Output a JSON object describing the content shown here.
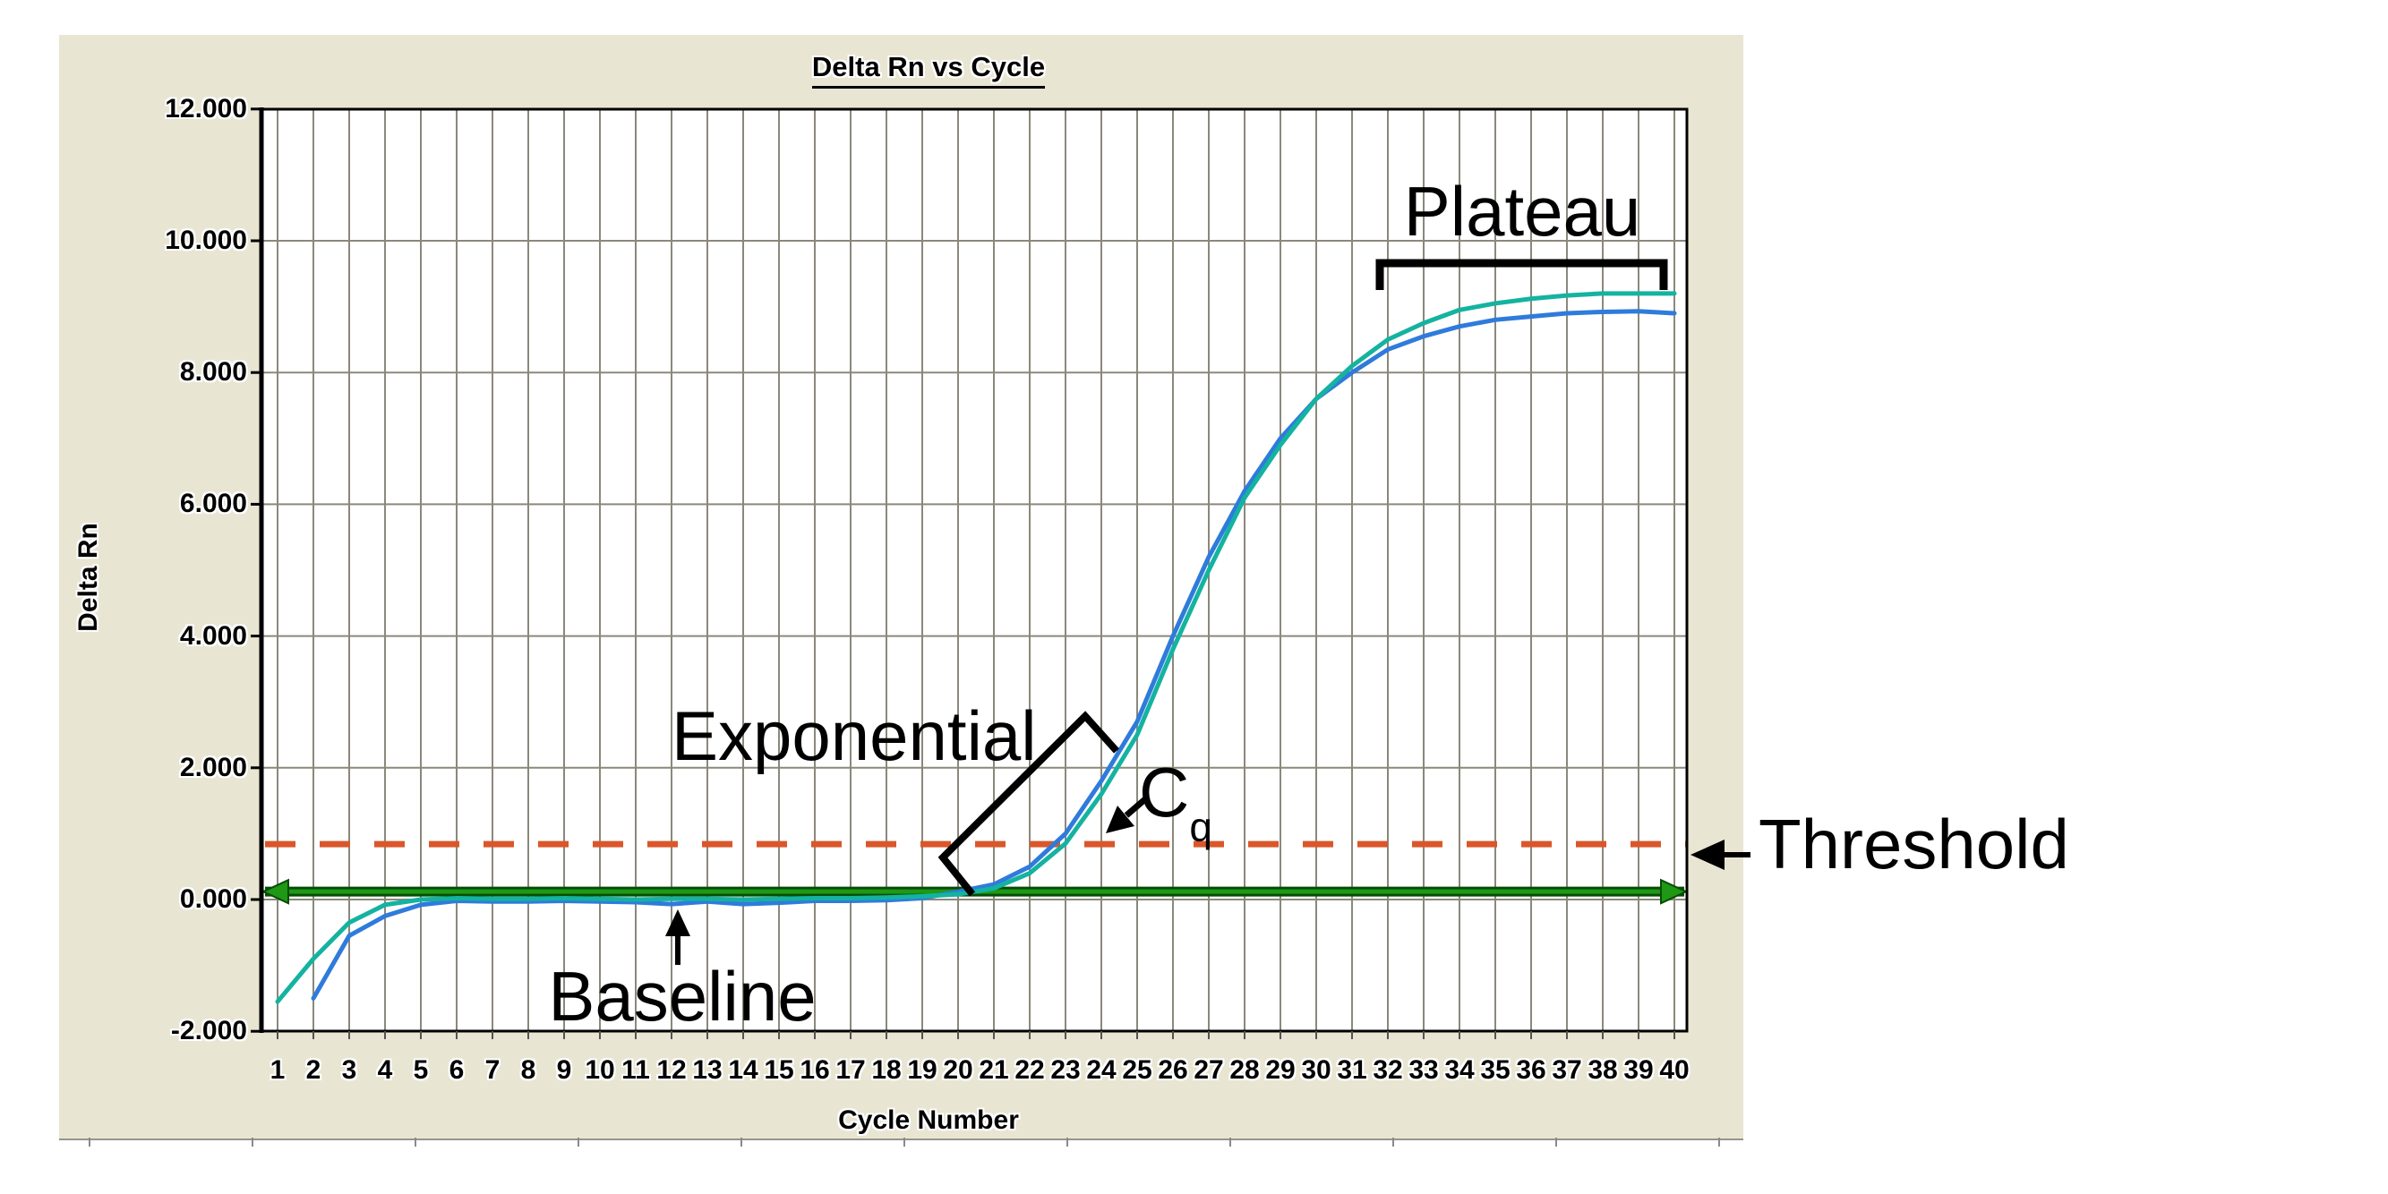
{
  "panel": {
    "background_color": "#e9e5d3"
  },
  "chart_data": {
    "type": "line",
    "title": "Delta Rn vs Cycle",
    "xlabel": "Cycle Number",
    "ylabel": "Delta Rn",
    "ylim": [
      -2,
      12
    ],
    "xlim": [
      1,
      40
    ],
    "grid": true,
    "grid_color": "#8b887b",
    "plot_background": "#ffffff",
    "x_ticks": [
      "1",
      "2",
      "3",
      "4",
      "5",
      "6",
      "7",
      "8",
      "9",
      "10",
      "11",
      "12",
      "13",
      "14",
      "15",
      "16",
      "17",
      "18",
      "19",
      "20",
      "21",
      "22",
      "23",
      "24",
      "25",
      "26",
      "27",
      "28",
      "29",
      "30",
      "31",
      "32",
      "33",
      "34",
      "35",
      "36",
      "37",
      "38",
      "39",
      "40"
    ],
    "y_ticks": [
      {
        "value": 12,
        "label": "12.000"
      },
      {
        "value": 10,
        "label": "10.000"
      },
      {
        "value": 8,
        "label": "8.000"
      },
      {
        "value": 6,
        "label": "6.000"
      },
      {
        "value": 4,
        "label": "4.000"
      },
      {
        "value": 2,
        "label": "2.000"
      },
      {
        "value": 0,
        "label": "0.000"
      },
      {
        "value": -2,
        "label": "-2.000"
      }
    ],
    "series": [
      {
        "name": "amplification-curve-blue",
        "color": "#2f7bdc",
        "x_start": 2,
        "x_step": 1,
        "values": [
          -1.5,
          -0.55,
          -0.25,
          -0.08,
          -0.02,
          -0.03,
          -0.03,
          -0.02,
          -0.03,
          -0.04,
          -0.07,
          -0.03,
          -0.07,
          -0.05,
          -0.02,
          -0.02,
          -0.01,
          0.02,
          0.12,
          0.23,
          0.5,
          1.0,
          1.8,
          2.7,
          4.0,
          5.2,
          6.2,
          7.0,
          7.6,
          8.0,
          8.35,
          8.55,
          8.7,
          8.8,
          8.85,
          8.9,
          8.92,
          8.93,
          8.9
        ]
      },
      {
        "name": "amplification-curve-teal",
        "color": "#14b3a0",
        "x_start": 1,
        "x_step": 1,
        "values": [
          -1.55,
          -0.9,
          -0.35,
          -0.08,
          0.0,
          0.02,
          0.01,
          0.01,
          0.02,
          0.01,
          0.0,
          0.01,
          0.01,
          0.0,
          0.01,
          0.02,
          0.02,
          0.03,
          0.05,
          0.08,
          0.17,
          0.4,
          0.85,
          1.6,
          2.5,
          3.8,
          5.0,
          6.1,
          6.9,
          7.6,
          8.1,
          8.5,
          8.75,
          8.95,
          9.05,
          9.12,
          9.17,
          9.2,
          9.2,
          9.2
        ]
      }
    ],
    "reference_lines": [
      {
        "name": "threshold-line",
        "value": 0.84,
        "style": "dashed",
        "color": "#d9572b"
      },
      {
        "name": "baseline-line",
        "value": 0.12,
        "style": "solid-double-arrow",
        "color": "#1e9815",
        "edge_color": "#064d06"
      }
    ],
    "annotations": {
      "plateau": {
        "text": "Plateau",
        "cycle_range": [
          32,
          40
        ]
      },
      "exponential": {
        "text": "Exponential",
        "cycle_range": [
          20,
          24
        ]
      },
      "cq": {
        "main": "C",
        "sub": "q",
        "approx_cycle": 23.5
      },
      "baseline": {
        "text": "Baseline",
        "points_to_cycle": 12
      },
      "threshold": {
        "text": "Threshold"
      }
    }
  }
}
